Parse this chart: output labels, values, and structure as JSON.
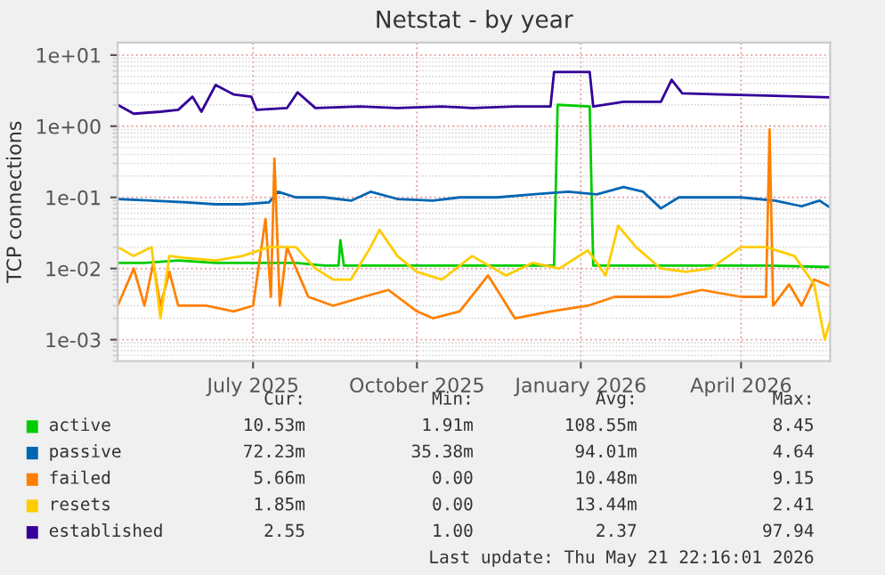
{
  "chart_data": {
    "type": "line",
    "title": "Netstat - by year",
    "ylabel": "TCP connections",
    "log": "y",
    "ylim": [
      0.0005,
      15
    ],
    "yticks": [
      {
        "value": 0.001,
        "label": "1e-03"
      },
      {
        "value": 0.01,
        "label": "1e-02"
      },
      {
        "value": 0.1,
        "label": "1e-01"
      },
      {
        "value": 1,
        "label": "1e+00"
      },
      {
        "value": 10,
        "label": "1e+01"
      }
    ],
    "xlim": [
      "2025-04-16",
      "2026-05-21"
    ],
    "xticks": [
      {
        "value": "2025-07-01",
        "label": "July 2025"
      },
      {
        "value": "2025-10-01",
        "label": "October 2025"
      },
      {
        "value": "2026-01-01",
        "label": "January 2026"
      },
      {
        "value": "2026-04-01",
        "label": "April 2026"
      }
    ],
    "grid": true,
    "legend": "bottom",
    "series": [
      {
        "name": "active",
        "color": "#00cc00",
        "x": [
          "2025-04-16",
          "2025-05-01",
          "2025-05-20",
          "2025-06-10",
          "2025-07-01",
          "2025-07-25",
          "2025-08-10",
          "2025-08-18",
          "2025-08-19",
          "2025-08-21",
          "2025-09-15",
          "2025-10-15",
          "2025-11-15",
          "2025-12-15",
          "2025-12-17",
          "2025-12-19",
          "2026-01-06",
          "2026-01-08",
          "2026-01-20",
          "2026-02-15",
          "2026-03-15",
          "2026-04-15",
          "2026-05-21"
        ],
        "values": [
          0.012,
          0.012,
          0.013,
          0.012,
          0.012,
          0.012,
          0.011,
          0.011,
          0.025,
          0.011,
          0.011,
          0.011,
          0.011,
          0.011,
          0.011,
          2.0,
          1.9,
          0.011,
          0.011,
          0.011,
          0.011,
          0.011,
          0.0105
        ]
      },
      {
        "name": "passive",
        "color": "#0066b3",
        "x": [
          "2025-04-16",
          "2025-05-05",
          "2025-05-25",
          "2025-06-10",
          "2025-06-25",
          "2025-07-10",
          "2025-07-15",
          "2025-07-25",
          "2025-08-10",
          "2025-08-25",
          "2025-09-05",
          "2025-09-20",
          "2025-10-10",
          "2025-10-25",
          "2025-11-15",
          "2025-12-05",
          "2025-12-25",
          "2026-01-10",
          "2026-01-25",
          "2026-02-05",
          "2026-02-15",
          "2026-02-25",
          "2026-03-15",
          "2026-04-01",
          "2026-04-20",
          "2026-05-05",
          "2026-05-15",
          "2026-05-21"
        ],
        "values": [
          0.095,
          0.09,
          0.085,
          0.08,
          0.08,
          0.085,
          0.12,
          0.1,
          0.1,
          0.09,
          0.12,
          0.095,
          0.09,
          0.1,
          0.1,
          0.11,
          0.12,
          0.11,
          0.14,
          0.12,
          0.07,
          0.1,
          0.1,
          0.1,
          0.09,
          0.075,
          0.09,
          0.072
        ]
      },
      {
        "name": "failed",
        "color": "#ff8000",
        "x": [
          "2025-04-16",
          "2025-04-25",
          "2025-05-01",
          "2025-05-06",
          "2025-05-10",
          "2025-05-15",
          "2025-05-20",
          "2025-06-05",
          "2025-06-20",
          "2025-07-01",
          "2025-07-08",
          "2025-07-11",
          "2025-07-13",
          "2025-07-16",
          "2025-07-20",
          "2025-08-01",
          "2025-08-15",
          "2025-09-01",
          "2025-09-15",
          "2025-10-01",
          "2025-10-10",
          "2025-10-25",
          "2025-11-10",
          "2025-11-25",
          "2025-12-15",
          "2026-01-05",
          "2026-01-20",
          "2026-02-05",
          "2026-02-20",
          "2026-03-10",
          "2026-04-01",
          "2026-04-15",
          "2026-04-17",
          "2026-04-19",
          "2026-04-28",
          "2026-05-05",
          "2026-05-12",
          "2026-05-21"
        ],
        "values": [
          0.003,
          0.01,
          0.003,
          0.012,
          0.003,
          0.009,
          0.003,
          0.003,
          0.0025,
          0.003,
          0.05,
          0.004,
          0.35,
          0.003,
          0.02,
          0.004,
          0.003,
          0.004,
          0.005,
          0.0025,
          0.002,
          0.0025,
          0.008,
          0.002,
          0.0025,
          0.003,
          0.004,
          0.004,
          0.004,
          0.005,
          0.004,
          0.004,
          0.9,
          0.003,
          0.006,
          0.003,
          0.007,
          0.00566
        ]
      },
      {
        "name": "resets",
        "color": "#ffcc00",
        "x": [
          "2025-04-16",
          "2025-04-25",
          "2025-05-05",
          "2025-05-10",
          "2025-05-15",
          "2025-05-25",
          "2025-06-10",
          "2025-06-25",
          "2025-07-10",
          "2025-07-25",
          "2025-08-05",
          "2025-08-15",
          "2025-08-25",
          "2025-09-05",
          "2025-09-10",
          "2025-09-20",
          "2025-10-01",
          "2025-10-15",
          "2025-11-01",
          "2025-11-20",
          "2025-12-05",
          "2025-12-20",
          "2026-01-05",
          "2026-01-15",
          "2026-01-22",
          "2026-02-01",
          "2026-02-15",
          "2026-03-01",
          "2026-03-15",
          "2026-04-01",
          "2026-04-15",
          "2026-05-01",
          "2026-05-12",
          "2026-05-18",
          "2026-05-21"
        ],
        "values": [
          0.02,
          0.015,
          0.02,
          0.002,
          0.015,
          0.014,
          0.013,
          0.015,
          0.02,
          0.02,
          0.01,
          0.007,
          0.007,
          0.02,
          0.035,
          0.015,
          0.009,
          0.007,
          0.015,
          0.008,
          0.012,
          0.01,
          0.018,
          0.008,
          0.04,
          0.02,
          0.01,
          0.009,
          0.01,
          0.02,
          0.02,
          0.015,
          0.006,
          0.001,
          0.00185
        ]
      },
      {
        "name": "established",
        "color": "#330099",
        "x": [
          "2025-04-16",
          "2025-04-25",
          "2025-05-10",
          "2025-05-20",
          "2025-05-28",
          "2025-06-02",
          "2025-06-10",
          "2025-06-20",
          "2025-06-30",
          "2025-07-03",
          "2025-07-20",
          "2025-07-26",
          "2025-08-05",
          "2025-08-30",
          "2025-09-20",
          "2025-10-15",
          "2025-11-01",
          "2025-11-25",
          "2025-12-15",
          "2025-12-17",
          "2026-01-06",
          "2026-01-08",
          "2026-01-25",
          "2026-02-15",
          "2026-02-21",
          "2026-02-27",
          "2026-03-20",
          "2026-04-15",
          "2026-05-21"
        ],
        "values": [
          2.0,
          1.5,
          1.6,
          1.7,
          2.6,
          1.6,
          3.8,
          2.8,
          2.6,
          1.7,
          1.8,
          3.0,
          1.8,
          1.9,
          1.8,
          1.9,
          1.8,
          1.9,
          1.9,
          5.8,
          5.8,
          1.9,
          2.2,
          2.2,
          4.5,
          2.9,
          2.8,
          2.7,
          2.55
        ]
      }
    ],
    "annotations": [
      "Cur:",
      "Min:",
      "Avg:",
      "Max:",
      "10.53m",
      "1.91m",
      "108.55m",
      "8.45",
      "72.23m",
      "35.38m",
      "94.01m",
      "4.64",
      "5.66m",
      "0.00",
      "10.48m",
      "9.15",
      "1.85m",
      "0.00",
      "13.44m",
      "2.41",
      "2.55",
      "1.00",
      "2.37",
      "97.94",
      "Last update: Thu May 21 22:16:01 2026"
    ]
  }
}
